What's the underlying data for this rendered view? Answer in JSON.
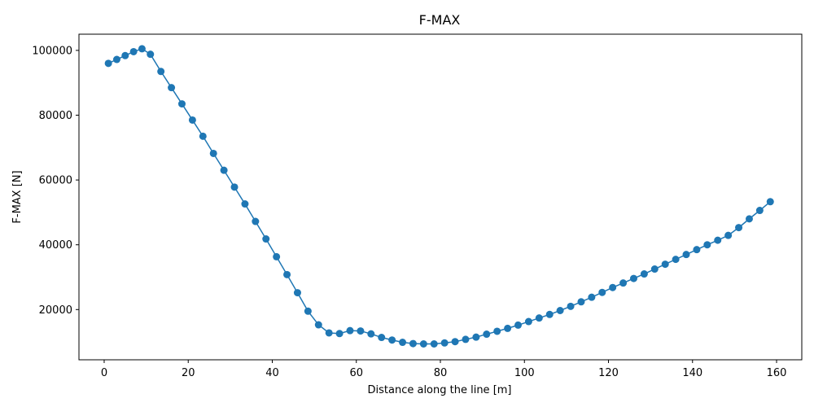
{
  "chart_data": {
    "type": "line",
    "title": "F-MAX",
    "xlabel": "Distance along the line [m]",
    "ylabel": "F-MAX [N]",
    "xlim": [
      -6,
      166
    ],
    "ylim": [
      4500,
      105000
    ],
    "xticks": [
      0,
      20,
      40,
      60,
      80,
      100,
      120,
      140,
      160
    ],
    "yticks": [
      20000,
      40000,
      60000,
      80000,
      100000
    ],
    "grid": false,
    "legend": "none",
    "series_color": "#1f77b4",
    "series": [
      {
        "markers": "circle",
        "x": [
          1,
          3,
          5,
          7,
          9,
          11,
          13.5,
          16,
          18.5,
          21,
          23.5,
          26,
          28.5,
          31,
          33.5,
          36,
          38.5,
          41,
          43.5,
          46,
          48.5,
          51,
          53.5,
          56,
          58.5,
          61,
          63.5,
          66,
          68.5,
          71,
          73.5,
          76,
          78.5,
          81,
          83.5,
          86,
          88.5,
          91,
          93.5,
          96,
          98.5,
          101,
          103.5,
          106,
          108.5,
          111,
          113.5,
          116,
          118.5,
          121,
          123.5,
          126,
          128.5,
          131,
          133.5,
          136,
          138.5,
          141,
          143.5,
          146,
          148.5,
          151,
          153.5,
          156,
          158.5
        ],
        "y": [
          96000,
          97200,
          98400,
          99600,
          100500,
          98800,
          93500,
          88500,
          83500,
          78500,
          73500,
          68200,
          63000,
          57800,
          52600,
          47200,
          41800,
          36300,
          30800,
          25200,
          19500,
          15300,
          12800,
          12600,
          13500,
          13400,
          12500,
          11400,
          10600,
          9900,
          9500,
          9400,
          9400,
          9700,
          10100,
          10800,
          11500,
          12400,
          13300,
          14200,
          15200,
          16300,
          17400,
          18500,
          19700,
          21000,
          22400,
          23800,
          25300,
          26800,
          28200,
          29600,
          31000,
          32500,
          34000,
          35500,
          37000,
          38500,
          40000,
          41400,
          42900,
          45300,
          48000,
          50600,
          53300
        ]
      }
    ]
  }
}
